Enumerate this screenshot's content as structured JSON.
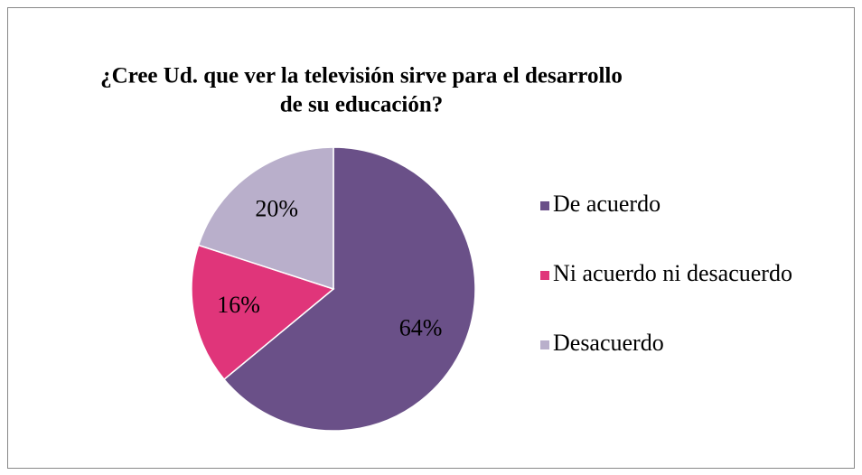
{
  "chart_data": {
    "type": "pie",
    "title": [
      "¿Cree Ud. que ver la televisión sirve  para el desarrollo",
      "de su educación?"
    ],
    "categories": [
      "De acuerdo",
      "Ni acuerdo ni desacuerdo",
      "Desacuerdo"
    ],
    "values": [
      64,
      16,
      20
    ],
    "value_labels": [
      "64%",
      "16%",
      "20%"
    ],
    "colors": [
      "#6a5088",
      "#e0357a",
      "#b9afcb"
    ],
    "legend": "right"
  }
}
